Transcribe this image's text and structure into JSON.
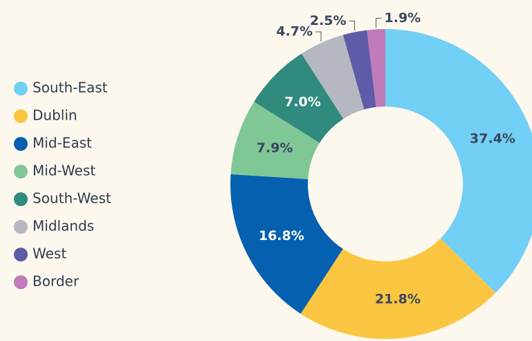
{
  "chart_data": {
    "type": "donut",
    "categories": [
      "South-East",
      "Dublin",
      "Mid-East",
      "Mid-West",
      "South-West",
      "Midlands",
      "West",
      "Border"
    ],
    "values": [
      37.4,
      21.8,
      16.8,
      7.9,
      7.0,
      4.7,
      2.5,
      1.9
    ],
    "value_labels": [
      "37.4%",
      "21.8%",
      "16.8%",
      "7.9%",
      "7.0%",
      "4.7%",
      "2.5%",
      "1.9%"
    ],
    "colors": [
      "#72cff5",
      "#fac641",
      "#0560b0",
      "#80c796",
      "#318a7e",
      "#b5b8c0",
      "#5e5ba8",
      "#c07bba"
    ],
    "legend": "left"
  }
}
